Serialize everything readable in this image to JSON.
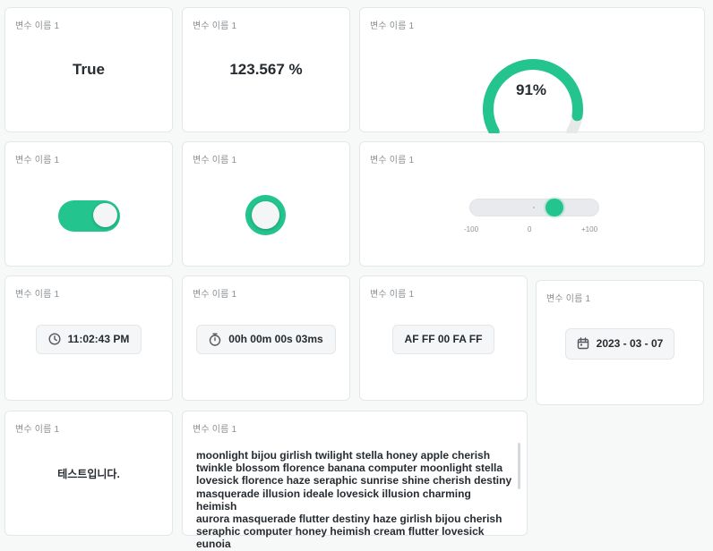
{
  "widgets": {
    "boolean": {
      "label": "변수 이름 1",
      "value": "True"
    },
    "percent": {
      "label": "변수 이름 1",
      "value": "123.567 %"
    },
    "gauge": {
      "label": "변수 이름 1",
      "value_text": "91%",
      "value": 0.91,
      "fill_color": "#23c48e",
      "track_color": "#e6e8ea"
    },
    "toggle": {
      "label": "변수 이름 1",
      "state": "on",
      "color": "#23c48e"
    },
    "radio": {
      "label": "변수 이름 1",
      "state": "on",
      "color": "#23c48e"
    },
    "slider": {
      "label": "변수 이름 1",
      "min_label": "-100",
      "mid_label": "0",
      "max_label": "+100",
      "min": -100,
      "max": 100,
      "value": 37,
      "color": "#23c48e"
    },
    "clock": {
      "label": "변수 이름 1",
      "value": "11:02:43 PM",
      "icon": "clock-icon"
    },
    "timer": {
      "label": "변수 이름 1",
      "value": "00h 00m 00s 03ms",
      "icon": "stopwatch-icon"
    },
    "hex": {
      "label": "변수 이름 1",
      "value": "AF FF 00 FA FF"
    },
    "date": {
      "label": "변수 이름 1",
      "value": "2023 - 03 - 07",
      "icon": "calendar-icon"
    },
    "korean_text": {
      "label": "변수 이름 1",
      "value": "테스트입니다."
    },
    "long_text": {
      "label": "변수 이름 1",
      "lines": [
        "moonlight bijou girlish twilight stella honey apple cherish",
        "twinkle blossom florence banana computer moonlight stella",
        "lovesick florence haze seraphic sunrise shine cherish destiny",
        "masquerade illusion ideale lovesick illusion charming heimish",
        "aurora masquerade flutter destiny haze girlish bijou cherish",
        "seraphic computer honey heimish cream flutter lovesick eunoia"
      ]
    }
  }
}
